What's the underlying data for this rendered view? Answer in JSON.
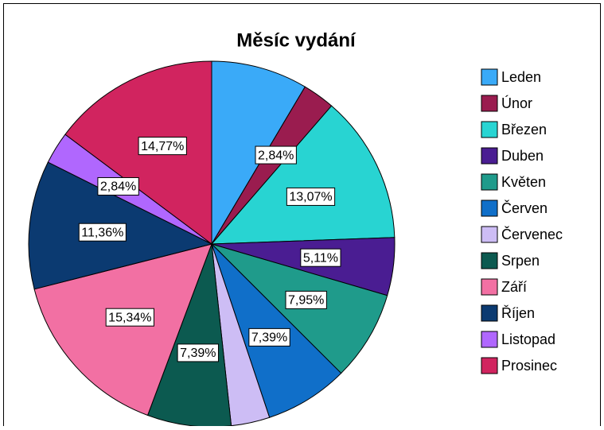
{
  "chart_data": {
    "type": "pie",
    "title": "Měsíc vydání",
    "categories": [
      "Leden",
      "Únor",
      "Březen",
      "Duben",
      "Květen",
      "Červen",
      "Červenec",
      "Srpen",
      "Září",
      "Říjen",
      "Listopad",
      "Prosinec"
    ],
    "values": [
      8.52,
      2.84,
      13.07,
      5.11,
      7.95,
      7.39,
      3.41,
      7.39,
      15.34,
      11.36,
      2.84,
      14.77
    ],
    "value_labels": [
      null,
      "2,84%",
      "13,07%",
      "5,11%",
      "7,95%",
      "7,39%",
      null,
      "7,39%",
      "15,34%",
      "11,36%",
      "2,84%",
      "14,77%"
    ],
    "colors": [
      "#3aaaf8",
      "#9a1c4f",
      "#28d4d2",
      "#4a1d92",
      "#1f9b8b",
      "#106fc9",
      "#cdbdf5",
      "#0c5a50",
      "#f270a3",
      "#0b3a71",
      "#b067fe",
      "#d1245f"
    ],
    "legend": "right"
  }
}
